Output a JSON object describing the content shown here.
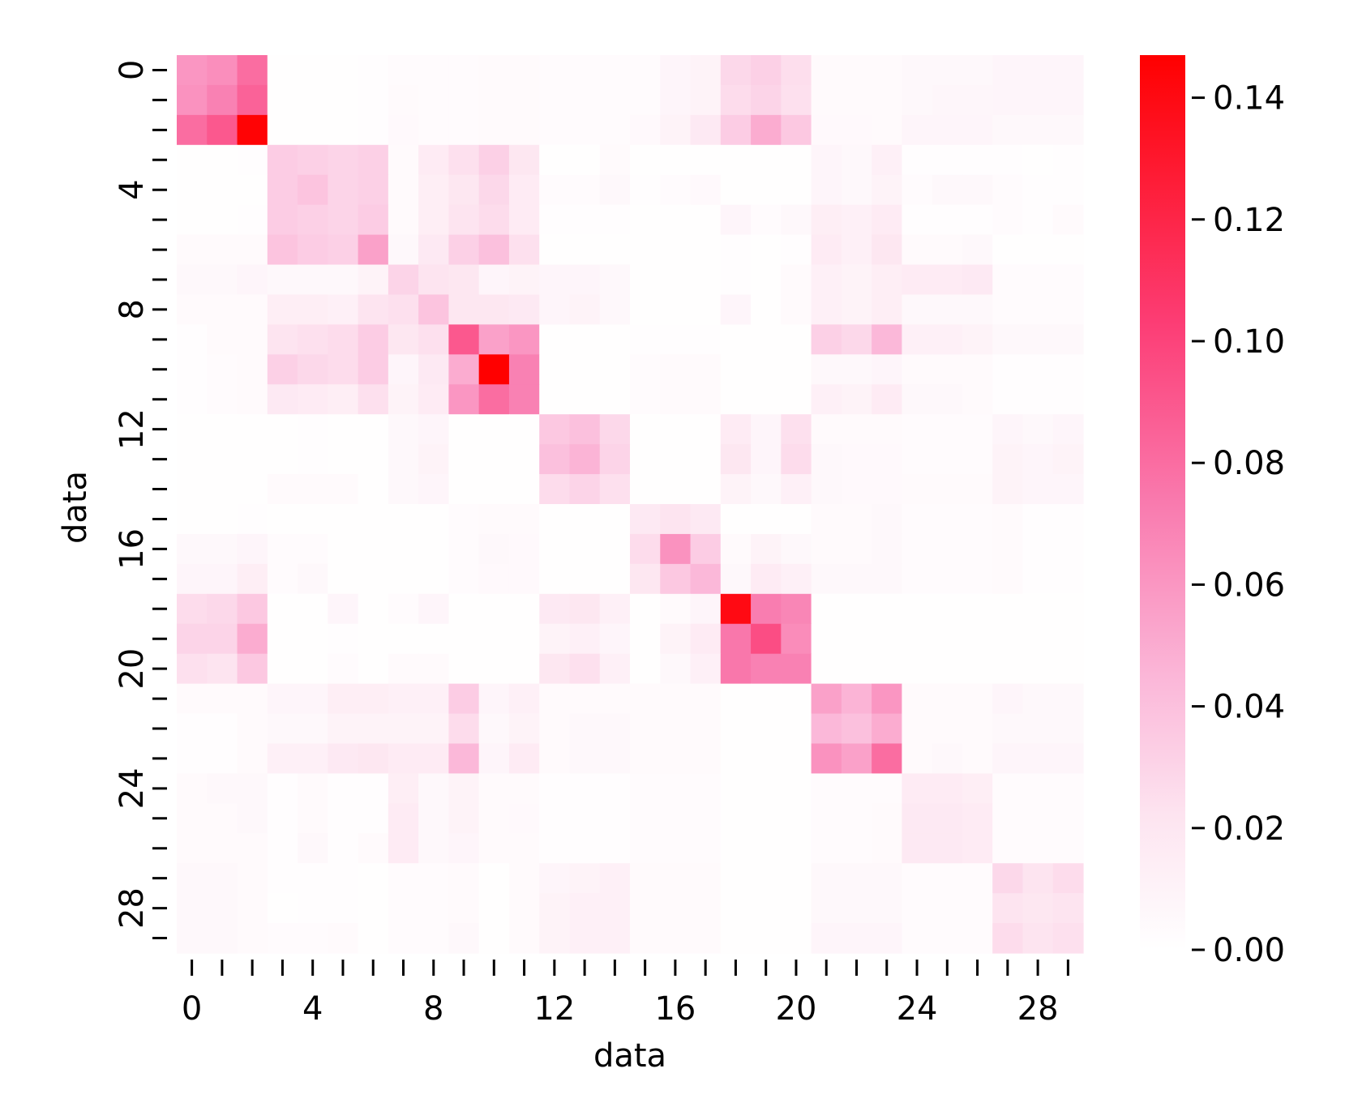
{
  "chart_data": {
    "type": "heatmap",
    "title": "",
    "xlabel": "data",
    "ylabel": "data",
    "rows": 30,
    "cols": 30,
    "x_tick_labels": [
      "0",
      "4",
      "8",
      "12",
      "16",
      "20",
      "24",
      "28"
    ],
    "x_tick_values": [
      0,
      4,
      8,
      12,
      16,
      20,
      24,
      28
    ],
    "y_tick_labels": [
      "0",
      "4",
      "8",
      "12",
      "16",
      "20",
      "24",
      "28"
    ],
    "y_tick_values": [
      0,
      4,
      8,
      12,
      16,
      20,
      24,
      28
    ],
    "colorbar": {
      "min": 0.0,
      "max": 0.147,
      "tick_values": [
        0.0,
        0.02,
        0.04,
        0.06,
        0.08,
        0.1,
        0.12,
        0.14
      ],
      "tick_labels": [
        "0.00",
        "0.02",
        "0.04",
        "0.06",
        "0.08",
        "0.10",
        "0.12",
        "0.14"
      ],
      "colormap": [
        {
          "stop": 0.0,
          "color": "#ffffff"
        },
        {
          "stop": 0.15,
          "color": "#fde4f0"
        },
        {
          "stop": 0.3,
          "color": "#fbb8d9"
        },
        {
          "stop": 0.5,
          "color": "#f97aae"
        },
        {
          "stop": 0.7,
          "color": "#fc3d75"
        },
        {
          "stop": 1.0,
          "color": "#ff0000"
        }
      ]
    },
    "values": [
      [
        0.06,
        0.064,
        0.08,
        0.001,
        0.001,
        0.001,
        0.002,
        0.003,
        0.003,
        0.003,
        0.004,
        0.004,
        0.003,
        0.003,
        0.003,
        0.003,
        0.008,
        0.01,
        0.028,
        0.032,
        0.025,
        0.004,
        0.004,
        0.004,
        0.006,
        0.006,
        0.006,
        0.008,
        0.008,
        0.008
      ],
      [
        0.062,
        0.07,
        0.085,
        0.001,
        0.001,
        0.001,
        0.002,
        0.004,
        0.003,
        0.003,
        0.004,
        0.004,
        0.003,
        0.003,
        0.003,
        0.003,
        0.008,
        0.01,
        0.026,
        0.03,
        0.024,
        0.004,
        0.004,
        0.004,
        0.006,
        0.007,
        0.007,
        0.008,
        0.008,
        0.008
      ],
      [
        0.08,
        0.09,
        0.145,
        0.001,
        0.001,
        0.001,
        0.002,
        0.005,
        0.003,
        0.003,
        0.004,
        0.004,
        0.003,
        0.003,
        0.003,
        0.005,
        0.01,
        0.018,
        0.034,
        0.05,
        0.036,
        0.005,
        0.005,
        0.004,
        0.008,
        0.008,
        0.008,
        0.006,
        0.006,
        0.006
      ],
      [
        0.001,
        0.001,
        0.002,
        0.034,
        0.032,
        0.03,
        0.032,
        0.004,
        0.016,
        0.024,
        0.032,
        0.02,
        0.001,
        0.001,
        0.004,
        0.001,
        0.001,
        0.001,
        0.001,
        0.001,
        0.001,
        0.008,
        0.006,
        0.012,
        0.002,
        0.002,
        0.002,
        0.002,
        0.001,
        0.002
      ],
      [
        0.001,
        0.001,
        0.001,
        0.034,
        0.038,
        0.03,
        0.032,
        0.004,
        0.014,
        0.02,
        0.028,
        0.016,
        0.003,
        0.003,
        0.006,
        0.002,
        0.003,
        0.005,
        0.001,
        0.001,
        0.001,
        0.008,
        0.006,
        0.01,
        0.003,
        0.006,
        0.006,
        0.003,
        0.002,
        0.002
      ],
      [
        0.001,
        0.001,
        0.002,
        0.034,
        0.032,
        0.03,
        0.034,
        0.004,
        0.014,
        0.022,
        0.026,
        0.016,
        0.002,
        0.002,
        0.002,
        0.001,
        0.001,
        0.001,
        0.008,
        0.003,
        0.006,
        0.014,
        0.012,
        0.016,
        0.002,
        0.002,
        0.002,
        0.003,
        0.002,
        0.004
      ],
      [
        0.004,
        0.004,
        0.004,
        0.038,
        0.034,
        0.032,
        0.055,
        0.006,
        0.018,
        0.032,
        0.04,
        0.024,
        0.001,
        0.001,
        0.001,
        0.001,
        0.001,
        0.001,
        0.002,
        0.001,
        0.002,
        0.016,
        0.012,
        0.02,
        0.004,
        0.004,
        0.006,
        0.001,
        0.001,
        0.001
      ],
      [
        0.006,
        0.006,
        0.008,
        0.006,
        0.006,
        0.006,
        0.01,
        0.03,
        0.022,
        0.02,
        0.008,
        0.01,
        0.008,
        0.008,
        0.006,
        0.001,
        0.001,
        0.001,
        0.002,
        0.001,
        0.004,
        0.012,
        0.01,
        0.014,
        0.016,
        0.016,
        0.018,
        0.003,
        0.003,
        0.003
      ],
      [
        0.004,
        0.004,
        0.004,
        0.014,
        0.014,
        0.012,
        0.022,
        0.024,
        0.038,
        0.02,
        0.02,
        0.018,
        0.008,
        0.01,
        0.006,
        0.001,
        0.001,
        0.001,
        0.008,
        0.001,
        0.004,
        0.012,
        0.01,
        0.014,
        0.006,
        0.006,
        0.006,
        0.003,
        0.003,
        0.003
      ],
      [
        0.002,
        0.004,
        0.004,
        0.022,
        0.024,
        0.026,
        0.034,
        0.02,
        0.024,
        0.09,
        0.055,
        0.06,
        0.001,
        0.001,
        0.001,
        0.002,
        0.002,
        0.002,
        0.001,
        0.001,
        0.001,
        0.032,
        0.028,
        0.044,
        0.012,
        0.012,
        0.01,
        0.006,
        0.006,
        0.006
      ],
      [
        0.002,
        0.003,
        0.004,
        0.032,
        0.028,
        0.026,
        0.034,
        0.008,
        0.018,
        0.05,
        0.147,
        0.07,
        0.001,
        0.001,
        0.001,
        0.003,
        0.004,
        0.004,
        0.001,
        0.001,
        0.001,
        0.006,
        0.006,
        0.008,
        0.004,
        0.004,
        0.004,
        0.002,
        0.002,
        0.002
      ],
      [
        0.002,
        0.003,
        0.004,
        0.018,
        0.016,
        0.014,
        0.024,
        0.01,
        0.016,
        0.06,
        0.08,
        0.07,
        0.001,
        0.001,
        0.001,
        0.003,
        0.004,
        0.004,
        0.001,
        0.001,
        0.001,
        0.012,
        0.01,
        0.016,
        0.006,
        0.006,
        0.004,
        0.002,
        0.002,
        0.002
      ],
      [
        0.001,
        0.001,
        0.001,
        0.001,
        0.002,
        0.001,
        0.001,
        0.006,
        0.008,
        0.001,
        0.001,
        0.001,
        0.036,
        0.04,
        0.028,
        0.001,
        0.001,
        0.001,
        0.016,
        0.008,
        0.024,
        0.004,
        0.004,
        0.004,
        0.003,
        0.003,
        0.003,
        0.008,
        0.006,
        0.008
      ],
      [
        0.001,
        0.001,
        0.001,
        0.001,
        0.002,
        0.001,
        0.001,
        0.006,
        0.01,
        0.001,
        0.001,
        0.001,
        0.04,
        0.046,
        0.03,
        0.001,
        0.001,
        0.001,
        0.02,
        0.008,
        0.026,
        0.006,
        0.005,
        0.005,
        0.003,
        0.003,
        0.003,
        0.01,
        0.008,
        0.01
      ],
      [
        0.001,
        0.001,
        0.001,
        0.004,
        0.004,
        0.004,
        0.001,
        0.006,
        0.008,
        0.001,
        0.001,
        0.001,
        0.026,
        0.03,
        0.024,
        0.001,
        0.001,
        0.001,
        0.01,
        0.006,
        0.012,
        0.006,
        0.005,
        0.005,
        0.004,
        0.004,
        0.004,
        0.01,
        0.008,
        0.008
      ],
      [
        0.001,
        0.001,
        0.002,
        0.001,
        0.001,
        0.001,
        0.001,
        0.001,
        0.001,
        0.003,
        0.004,
        0.004,
        0.001,
        0.001,
        0.001,
        0.018,
        0.022,
        0.018,
        0.001,
        0.001,
        0.001,
        0.004,
        0.004,
        0.006,
        0.003,
        0.003,
        0.003,
        0.004,
        0.002,
        0.002
      ],
      [
        0.006,
        0.006,
        0.008,
        0.003,
        0.003,
        0.001,
        0.001,
        0.001,
        0.001,
        0.003,
        0.006,
        0.005,
        0.001,
        0.001,
        0.001,
        0.026,
        0.062,
        0.034,
        0.004,
        0.01,
        0.006,
        0.004,
        0.004,
        0.006,
        0.003,
        0.003,
        0.003,
        0.004,
        0.002,
        0.002
      ],
      [
        0.008,
        0.008,
        0.014,
        0.003,
        0.006,
        0.001,
        0.001,
        0.001,
        0.001,
        0.003,
        0.005,
        0.005,
        0.001,
        0.001,
        0.001,
        0.02,
        0.036,
        0.044,
        0.006,
        0.016,
        0.012,
        0.006,
        0.006,
        0.006,
        0.003,
        0.003,
        0.003,
        0.004,
        0.002,
        0.002
      ],
      [
        0.026,
        0.028,
        0.036,
        0.001,
        0.001,
        0.008,
        0.001,
        0.003,
        0.008,
        0.001,
        0.001,
        0.001,
        0.018,
        0.02,
        0.012,
        0.001,
        0.004,
        0.008,
        0.14,
        0.072,
        0.068,
        0.001,
        0.001,
        0.001,
        0.001,
        0.001,
        0.001,
        0.001,
        0.001,
        0.001
      ],
      [
        0.03,
        0.03,
        0.05,
        0.001,
        0.001,
        0.002,
        0.001,
        0.001,
        0.001,
        0.001,
        0.001,
        0.001,
        0.01,
        0.012,
        0.008,
        0.001,
        0.01,
        0.016,
        0.075,
        0.095,
        0.065,
        0.001,
        0.001,
        0.001,
        0.001,
        0.001,
        0.001,
        0.001,
        0.001,
        0.001
      ],
      [
        0.024,
        0.022,
        0.036,
        0.001,
        0.001,
        0.003,
        0.001,
        0.004,
        0.004,
        0.001,
        0.001,
        0.001,
        0.02,
        0.024,
        0.012,
        0.001,
        0.006,
        0.012,
        0.075,
        0.07,
        0.07,
        0.001,
        0.001,
        0.001,
        0.001,
        0.001,
        0.001,
        0.001,
        0.001,
        0.001
      ],
      [
        0.004,
        0.004,
        0.004,
        0.008,
        0.008,
        0.014,
        0.014,
        0.012,
        0.012,
        0.034,
        0.008,
        0.012,
        0.004,
        0.004,
        0.004,
        0.004,
        0.004,
        0.004,
        0.001,
        0.001,
        0.001,
        0.055,
        0.046,
        0.06,
        0.004,
        0.004,
        0.004,
        0.008,
        0.006,
        0.006
      ],
      [
        0.002,
        0.002,
        0.004,
        0.006,
        0.006,
        0.01,
        0.01,
        0.01,
        0.01,
        0.026,
        0.006,
        0.01,
        0.004,
        0.006,
        0.006,
        0.004,
        0.004,
        0.004,
        0.001,
        0.001,
        0.001,
        0.044,
        0.04,
        0.05,
        0.004,
        0.004,
        0.004,
        0.006,
        0.006,
        0.006
      ],
      [
        0.002,
        0.002,
        0.004,
        0.012,
        0.012,
        0.018,
        0.02,
        0.016,
        0.016,
        0.044,
        0.008,
        0.016,
        0.004,
        0.006,
        0.006,
        0.004,
        0.004,
        0.004,
        0.001,
        0.001,
        0.001,
        0.062,
        0.055,
        0.08,
        0.004,
        0.006,
        0.004,
        0.008,
        0.008,
        0.008
      ],
      [
        0.004,
        0.006,
        0.006,
        0.002,
        0.004,
        0.002,
        0.002,
        0.014,
        0.006,
        0.01,
        0.004,
        0.004,
        0.002,
        0.002,
        0.002,
        0.003,
        0.003,
        0.003,
        0.001,
        0.001,
        0.001,
        0.003,
        0.003,
        0.003,
        0.016,
        0.016,
        0.014,
        0.003,
        0.003,
        0.003
      ],
      [
        0.004,
        0.004,
        0.006,
        0.002,
        0.004,
        0.002,
        0.002,
        0.016,
        0.006,
        0.01,
        0.004,
        0.005,
        0.002,
        0.002,
        0.002,
        0.003,
        0.003,
        0.003,
        0.001,
        0.001,
        0.001,
        0.003,
        0.003,
        0.004,
        0.018,
        0.018,
        0.016,
        0.003,
        0.003,
        0.003
      ],
      [
        0.004,
        0.004,
        0.004,
        0.002,
        0.006,
        0.002,
        0.004,
        0.016,
        0.006,
        0.008,
        0.004,
        0.004,
        0.002,
        0.002,
        0.002,
        0.003,
        0.003,
        0.003,
        0.001,
        0.001,
        0.001,
        0.003,
        0.003,
        0.004,
        0.018,
        0.018,
        0.016,
        0.003,
        0.003,
        0.003
      ],
      [
        0.006,
        0.006,
        0.004,
        0.002,
        0.002,
        0.002,
        0.001,
        0.003,
        0.003,
        0.004,
        0.001,
        0.004,
        0.008,
        0.01,
        0.012,
        0.004,
        0.004,
        0.004,
        0.001,
        0.001,
        0.001,
        0.006,
        0.006,
        0.006,
        0.003,
        0.003,
        0.003,
        0.028,
        0.022,
        0.026
      ],
      [
        0.006,
        0.006,
        0.004,
        0.001,
        0.002,
        0.002,
        0.001,
        0.003,
        0.003,
        0.004,
        0.001,
        0.004,
        0.01,
        0.012,
        0.012,
        0.004,
        0.004,
        0.004,
        0.001,
        0.001,
        0.001,
        0.006,
        0.006,
        0.006,
        0.003,
        0.003,
        0.003,
        0.022,
        0.02,
        0.022
      ],
      [
        0.006,
        0.006,
        0.004,
        0.003,
        0.003,
        0.004,
        0.001,
        0.003,
        0.003,
        0.006,
        0.001,
        0.004,
        0.01,
        0.012,
        0.012,
        0.004,
        0.004,
        0.004,
        0.001,
        0.001,
        0.001,
        0.008,
        0.008,
        0.008,
        0.003,
        0.003,
        0.003,
        0.026,
        0.022,
        0.024
      ]
    ]
  }
}
